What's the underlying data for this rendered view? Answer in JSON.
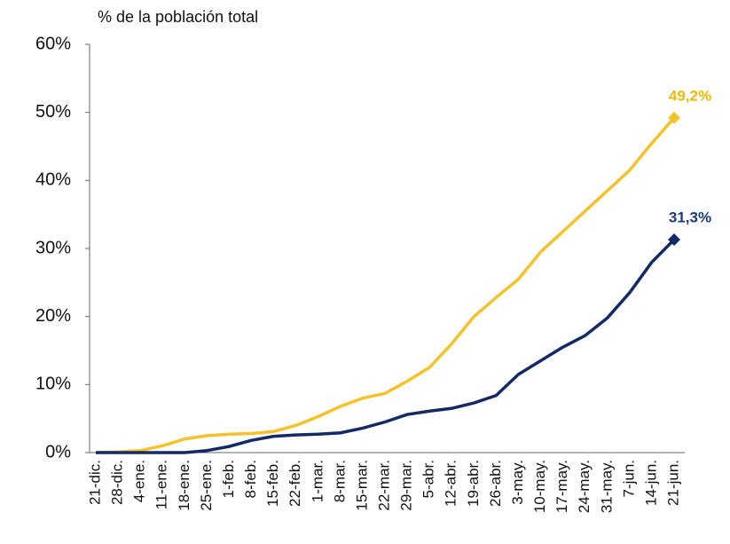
{
  "chart_data": {
    "type": "line",
    "y_label": "% de la población total",
    "categories": [
      "21-dic.",
      "28-dic.",
      "4-ene.",
      "11-ene.",
      "18-ene.",
      "25-ene.",
      "1-feb.",
      "8-feb.",
      "15-feb.",
      "22-feb.",
      "1-mar.",
      "8-mar.",
      "15-mar.",
      "22-mar.",
      "29-mar.",
      "5-abr.",
      "12-abr.",
      "19-abr.",
      "26-abr.",
      "3-may.",
      "10-may.",
      "17-may.",
      "24-may.",
      "31-may.",
      "7-jun.",
      "14-jun.",
      "21-jun."
    ],
    "series": [
      {
        "color": "#f6c229",
        "label_color": "#f2b705",
        "values": [
          0,
          0.1,
          0.3,
          1.0,
          2.0,
          2.5,
          2.7,
          2.8,
          3.1,
          4.0,
          5.3,
          6.8,
          8.0,
          8.7,
          10.5,
          12.5,
          16.0,
          20.0,
          22.8,
          25.5,
          29.5,
          32.5,
          35.5,
          38.5,
          41.5,
          45.5,
          49.2
        ],
        "end_label": "49,2%"
      },
      {
        "color": "#132a66",
        "label_color": "#1a3a80",
        "values": [
          0,
          0,
          0,
          0,
          0,
          0.3,
          0.9,
          1.8,
          2.4,
          2.6,
          2.7,
          2.9,
          3.6,
          4.5,
          5.6,
          6.1,
          6.5,
          7.3,
          8.4,
          11.5,
          13.5,
          15.5,
          17.2,
          19.8,
          23.5,
          28.0,
          31.3
        ],
        "end_label": "31,3%"
      }
    ],
    "ylim": [
      0,
      60
    ],
    "yticks": [
      {
        "value": 0,
        "label": "0%"
      },
      {
        "value": 10,
        "label": "10%"
      },
      {
        "value": 20,
        "label": "20%"
      },
      {
        "value": 30,
        "label": "30%"
      },
      {
        "value": 40,
        "label": "40%"
      },
      {
        "value": 50,
        "label": "50%"
      },
      {
        "value": 60,
        "label": "60%"
      }
    ]
  }
}
